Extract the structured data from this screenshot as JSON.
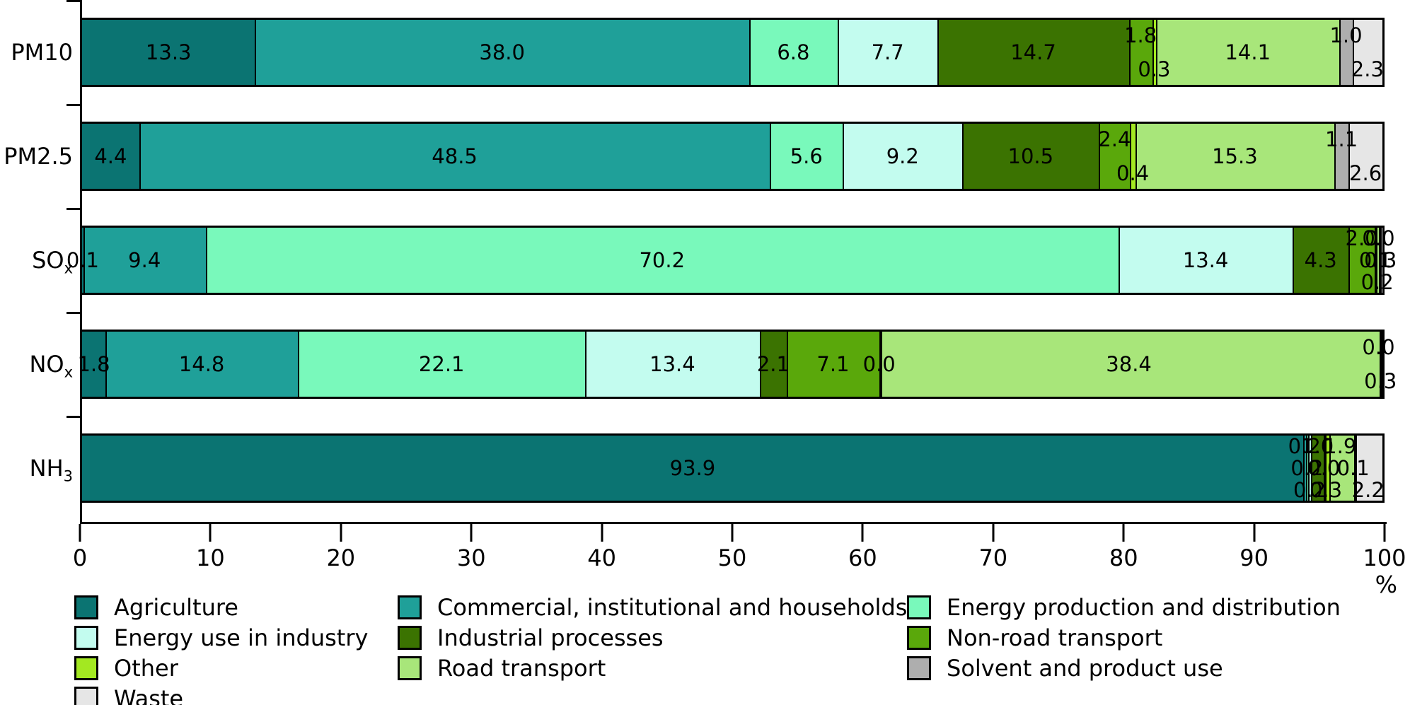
{
  "chart_data": {
    "type": "bar",
    "orientation": "horizontal",
    "stacked": true,
    "title": "",
    "xlabel": "%",
    "xlim": [
      0,
      100
    ],
    "xticks": [
      0,
      10,
      20,
      30,
      40,
      50,
      60,
      70,
      80,
      90,
      100
    ],
    "grid": false,
    "legend_position": "bottom",
    "categories": [
      {
        "name": "PM10",
        "base": "PM10",
        "sub": ""
      },
      {
        "name": "PM2.5",
        "base": "PM2.5",
        "sub": ""
      },
      {
        "name": "SOx",
        "base": "SO",
        "sub": "x"
      },
      {
        "name": "NOx",
        "base": "NO",
        "sub": "x"
      },
      {
        "name": "NH3",
        "base": "NH",
        "sub": "3"
      }
    ],
    "series": [
      {
        "name": "Agriculture",
        "color": "#0B7472",
        "values": [
          13.3,
          4.4,
          0.1,
          1.8,
          93.9
        ]
      },
      {
        "name": "Commercial, institutional and households",
        "color": "#1FA099",
        "values": [
          38.0,
          48.5,
          9.4,
          14.8,
          0.2
        ]
      },
      {
        "name": "Energy production and distribution",
        "color": "#79F9BB",
        "values": [
          6.8,
          5.6,
          70.2,
          22.1,
          0.2
        ]
      },
      {
        "name": "Energy use in industry",
        "color": "#C3FCEF",
        "values": [
          7.7,
          9.2,
          13.4,
          13.4,
          0.2
        ]
      },
      {
        "name": "Industrial processes",
        "color": "#3B7301",
        "values": [
          14.7,
          10.5,
          4.3,
          2.1,
          1.0
        ]
      },
      {
        "name": "Non-road transport",
        "color": "#5AA80B",
        "values": [
          1.8,
          2.4,
          2.0,
          7.1,
          0.0
        ]
      },
      {
        "name": "Other",
        "color": "#A3E821",
        "values": [
          0.3,
          0.4,
          0.1,
          0.0,
          0.3
        ]
      },
      {
        "name": "Road transport",
        "color": "#A8E67A",
        "values": [
          14.1,
          15.3,
          0.2,
          38.4,
          1.9
        ]
      },
      {
        "name": "Solvent and product use",
        "color": "#AEAEAE",
        "values": [
          1.0,
          1.1,
          0.0,
          0.0,
          0.1
        ]
      },
      {
        "name": "Waste",
        "color": "#E6E6E6",
        "values": [
          2.3,
          2.6,
          0.3,
          0.3,
          2.2
        ]
      }
    ],
    "value_label_decimals": 1,
    "legend_columns": [
      [
        "Agriculture",
        "Energy use in industry",
        "Other",
        "Waste"
      ],
      [
        "Commercial, institutional and households",
        "Industrial processes",
        "Road transport"
      ],
      [
        "Energy production and distribution",
        "Non-road transport",
        "Solvent and product use"
      ]
    ]
  }
}
